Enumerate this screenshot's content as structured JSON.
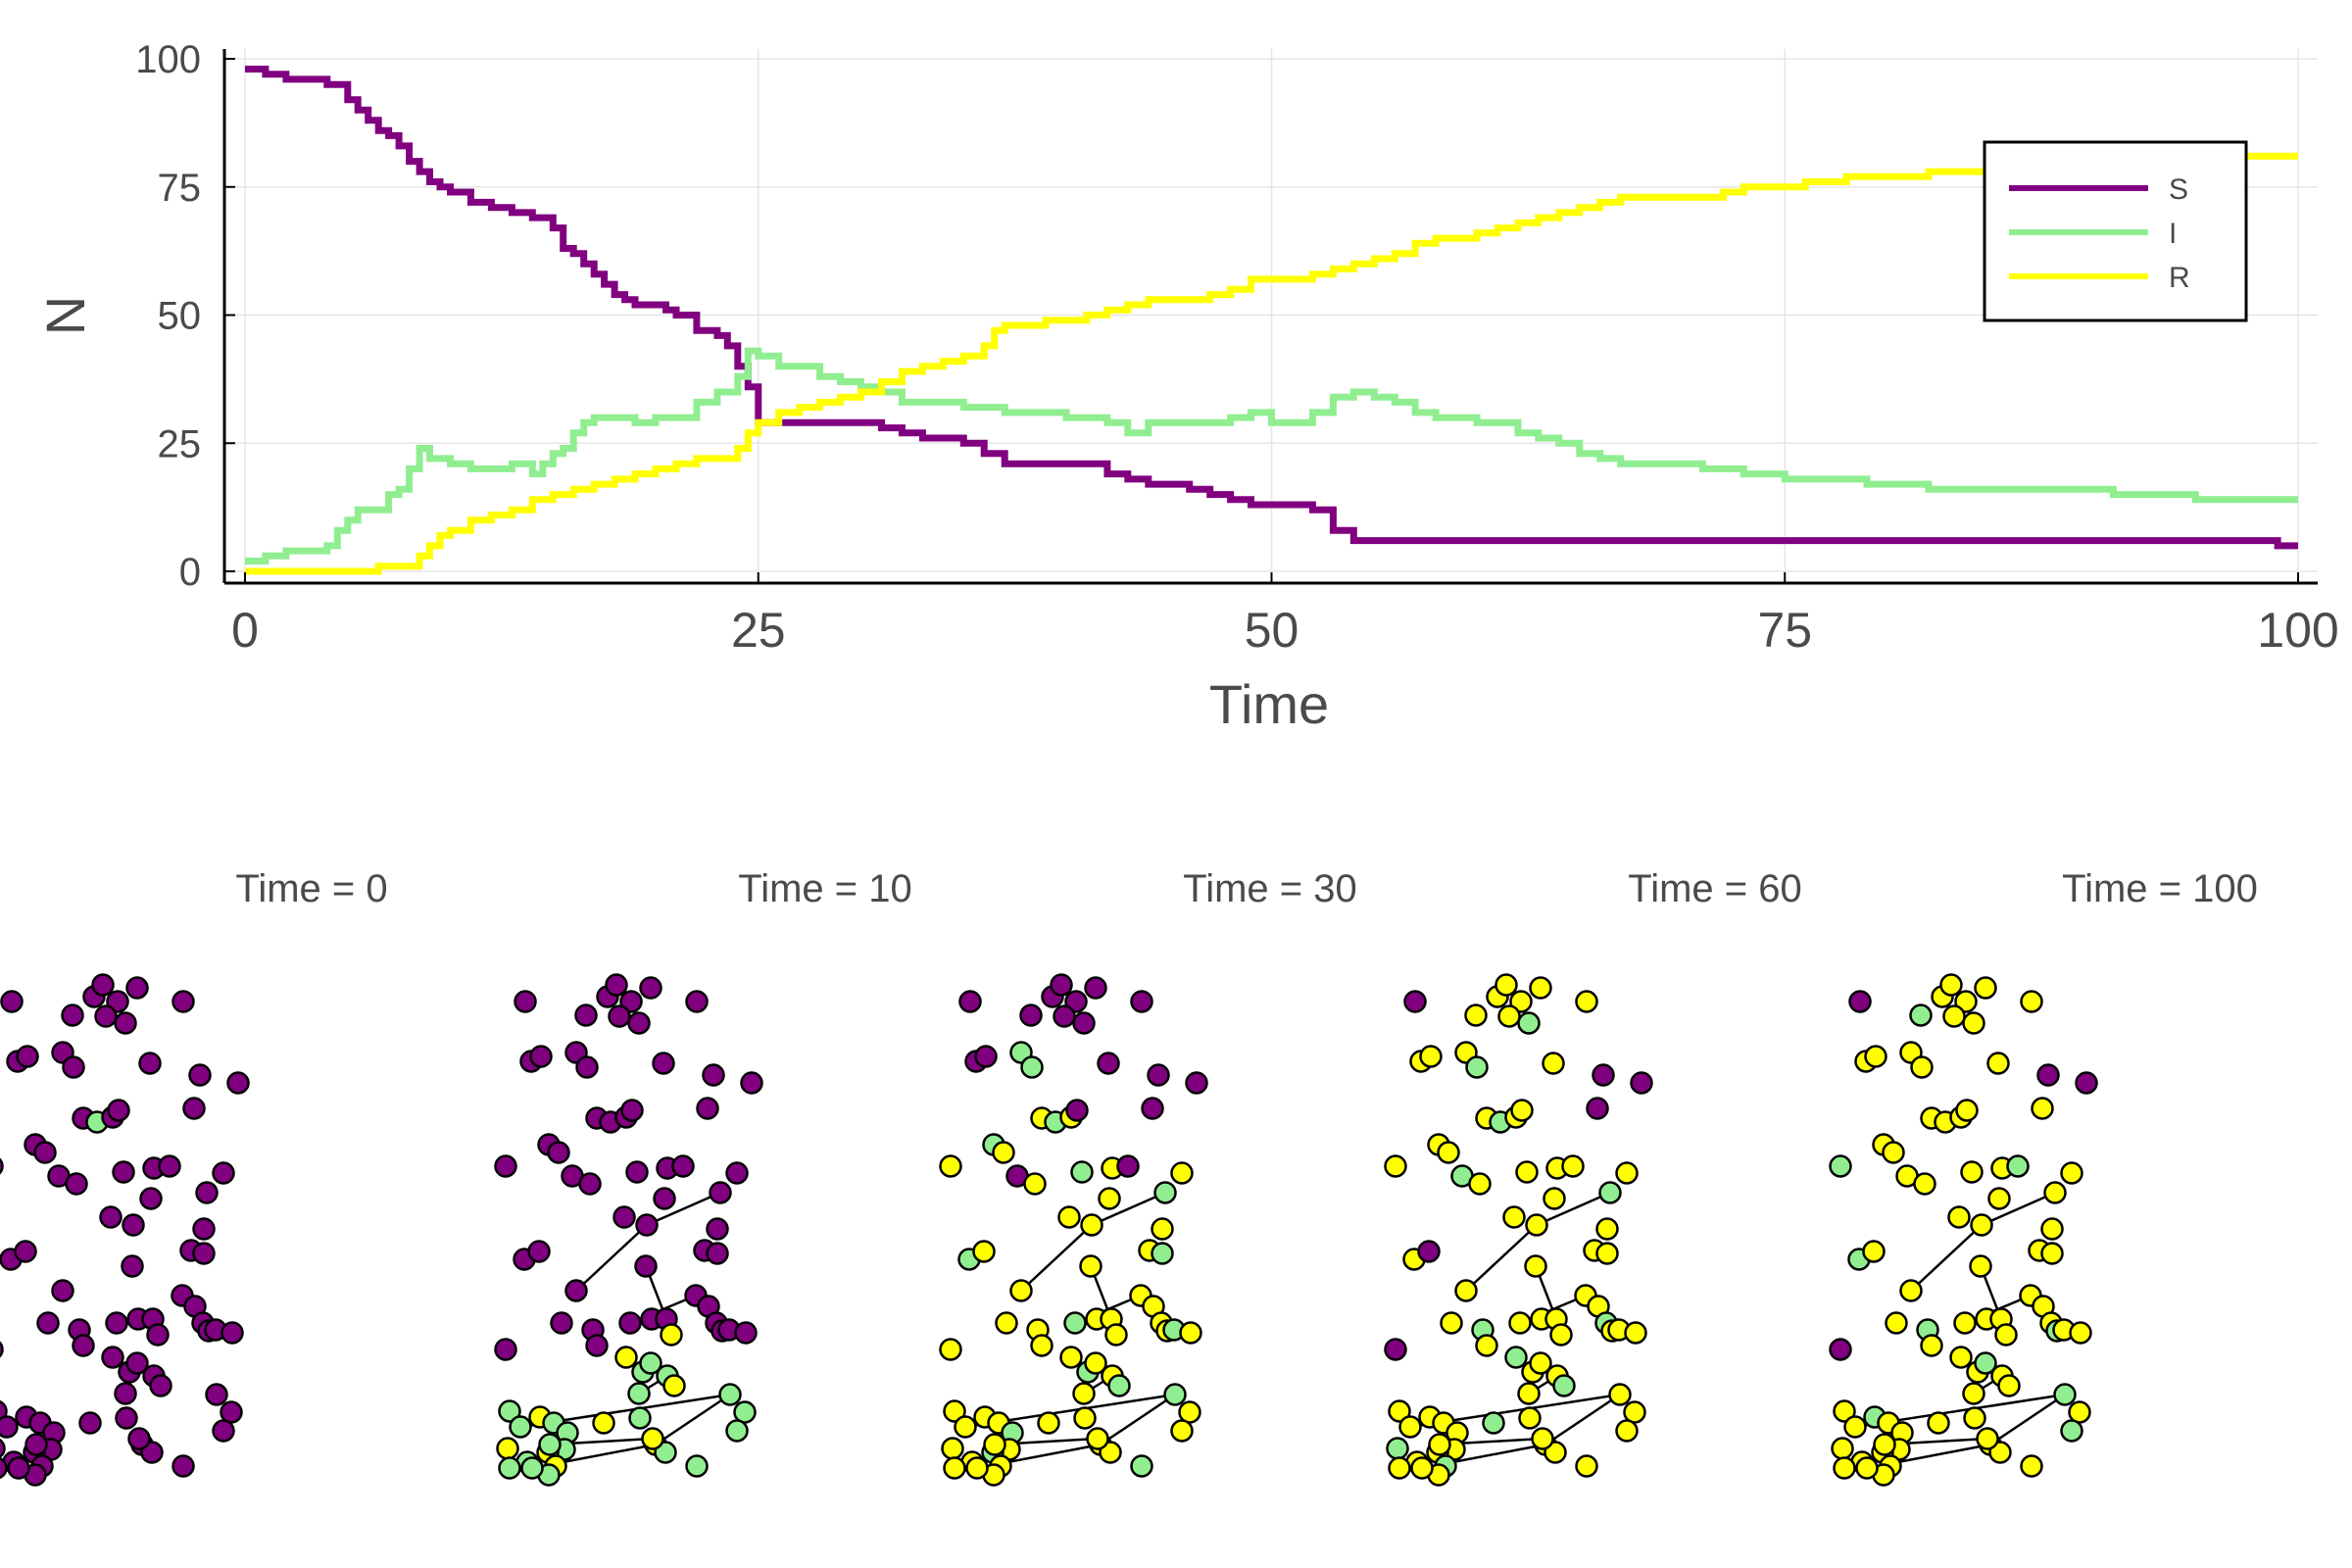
{
  "chart_data": [
    {
      "type": "line",
      "title": "",
      "xlabel": "Time",
      "ylabel": "N",
      "xlim": [
        0,
        100
      ],
      "ylim": [
        0,
        100
      ],
      "xticks": [
        0,
        25,
        50,
        75,
        100
      ],
      "yticks": [
        0,
        25,
        50,
        75,
        100
      ],
      "x_tick_labels": [
        "0",
        "25",
        "50",
        "75",
        "100"
      ],
      "y_tick_labels": [
        "0",
        "25",
        "50",
        "75",
        "100"
      ],
      "grid": true,
      "legend_position": "top-right",
      "step": true,
      "series": [
        {
          "name": "S",
          "color": "#800080",
          "points": [
            [
              0,
              98
            ],
            [
              0.5,
              98
            ],
            [
              1,
              97
            ],
            [
              2,
              96
            ],
            [
              4,
              95
            ],
            [
              5,
              92
            ],
            [
              5.5,
              90
            ],
            [
              6,
              88
            ],
            [
              6.5,
              86
            ],
            [
              7,
              85
            ],
            [
              7.5,
              83
            ],
            [
              8,
              80
            ],
            [
              8.5,
              78
            ],
            [
              9,
              76
            ],
            [
              9.5,
              75
            ],
            [
              10,
              74
            ],
            [
              11,
              72
            ],
            [
              12,
              71
            ],
            [
              13,
              70
            ],
            [
              14,
              69
            ],
            [
              15,
              67
            ],
            [
              15.5,
              63
            ],
            [
              16,
              62
            ],
            [
              16.5,
              60
            ],
            [
              17,
              58
            ],
            [
              17.5,
              56
            ],
            [
              18,
              54
            ],
            [
              18.5,
              53
            ],
            [
              19,
              52
            ],
            [
              20,
              52
            ],
            [
              20.5,
              51
            ],
            [
              21,
              50
            ],
            [
              22,
              47
            ],
            [
              23,
              46
            ],
            [
              23.5,
              44
            ],
            [
              24,
              40
            ],
            [
              24.5,
              36
            ],
            [
              25,
              29
            ],
            [
              26,
              29
            ],
            [
              30,
              29
            ],
            [
              31,
              28
            ],
            [
              32,
              27
            ],
            [
              33,
              26
            ],
            [
              34,
              26
            ],
            [
              35,
              25
            ],
            [
              36,
              23
            ],
            [
              37,
              21
            ],
            [
              40,
              21
            ],
            [
              42,
              19
            ],
            [
              43,
              18
            ],
            [
              44,
              17
            ],
            [
              45,
              17
            ],
            [
              46,
              16
            ],
            [
              47,
              15
            ],
            [
              48,
              14
            ],
            [
              49,
              13
            ],
            [
              50,
              13
            ],
            [
              52,
              12
            ],
            [
              53,
              8
            ],
            [
              54,
              6
            ],
            [
              60,
              6
            ],
            [
              70,
              6
            ],
            [
              80,
              6
            ],
            [
              90,
              6
            ],
            [
              98,
              6
            ],
            [
              99,
              5
            ],
            [
              100,
              5
            ]
          ]
        },
        {
          "name": "I",
          "color": "#90EE90",
          "points": [
            [
              0,
              2
            ],
            [
              0.5,
              2
            ],
            [
              1,
              3
            ],
            [
              2,
              4
            ],
            [
              3,
              4
            ],
            [
              4,
              5
            ],
            [
              4.5,
              8
            ],
            [
              5,
              10
            ],
            [
              5.5,
              12
            ],
            [
              6,
              12
            ],
            [
              7,
              15
            ],
            [
              7.5,
              16
            ],
            [
              8,
              20
            ],
            [
              8.5,
              24
            ],
            [
              9,
              22
            ],
            [
              10,
              21
            ],
            [
              11,
              20
            ],
            [
              12,
              20
            ],
            [
              13,
              21
            ],
            [
              14,
              19
            ],
            [
              14.5,
              21
            ],
            [
              15,
              23
            ],
            [
              15.5,
              24
            ],
            [
              16,
              27
            ],
            [
              16.5,
              29
            ],
            [
              17,
              30
            ],
            [
              18,
              30
            ],
            [
              19,
              29
            ],
            [
              20,
              30
            ],
            [
              21,
              30
            ],
            [
              22,
              33
            ],
            [
              23,
              35
            ],
            [
              24,
              38
            ],
            [
              24.5,
              43
            ],
            [
              25,
              42
            ],
            [
              26,
              40
            ],
            [
              27,
              40
            ],
            [
              28,
              38
            ],
            [
              29,
              37
            ],
            [
              30,
              36
            ],
            [
              31,
              35
            ],
            [
              32,
              33
            ],
            [
              33,
              33
            ],
            [
              35,
              32
            ],
            [
              36,
              32
            ],
            [
              37,
              31
            ],
            [
              38,
              31
            ],
            [
              40,
              30
            ],
            [
              41,
              30
            ],
            [
              42,
              29
            ],
            [
              43,
              27
            ],
            [
              44,
              29
            ],
            [
              45,
              29
            ],
            [
              46,
              29
            ],
            [
              48,
              30
            ],
            [
              49,
              31
            ],
            [
              50,
              29
            ],
            [
              51,
              29
            ],
            [
              52,
              31
            ],
            [
              53,
              34
            ],
            [
              54,
              35
            ],
            [
              55,
              34
            ],
            [
              56,
              33
            ],
            [
              57,
              31
            ],
            [
              58,
              30
            ],
            [
              60,
              29
            ],
            [
              62,
              27
            ],
            [
              63,
              26
            ],
            [
              64,
              25
            ],
            [
              65,
              23
            ],
            [
              66,
              22
            ],
            [
              67,
              21
            ],
            [
              70,
              21
            ],
            [
              71,
              20
            ],
            [
              72,
              20
            ],
            [
              73,
              19
            ],
            [
              74,
              19
            ],
            [
              75,
              18
            ],
            [
              78,
              18
            ],
            [
              79,
              17
            ],
            [
              81,
              17
            ],
            [
              82,
              16
            ],
            [
              90,
              16
            ],
            [
              91,
              15
            ],
            [
              94,
              15
            ],
            [
              95,
              14
            ],
            [
              98,
              14
            ],
            [
              100,
              14
            ]
          ]
        },
        {
          "name": "R",
          "color": "#FFFF00",
          "points": [
            [
              0,
              0
            ],
            [
              6,
              0
            ],
            [
              6.5,
              1
            ],
            [
              8,
              1
            ],
            [
              8.5,
              3
            ],
            [
              9,
              5
            ],
            [
              9.5,
              7
            ],
            [
              10,
              8
            ],
            [
              11,
              10
            ],
            [
              12,
              11
            ],
            [
              13,
              12
            ],
            [
              14,
              14
            ],
            [
              15,
              15
            ],
            [
              16,
              16
            ],
            [
              17,
              17
            ],
            [
              18,
              18
            ],
            [
              19,
              19
            ],
            [
              20,
              20
            ],
            [
              21,
              21
            ],
            [
              22,
              22
            ],
            [
              23,
              22
            ],
            [
              24,
              24
            ],
            [
              24.5,
              27
            ],
            [
              25,
              29
            ],
            [
              26,
              31
            ],
            [
              27,
              32
            ],
            [
              28,
              33
            ],
            [
              29,
              34
            ],
            [
              30,
              35
            ],
            [
              31,
              37
            ],
            [
              32,
              39
            ],
            [
              33,
              40
            ],
            [
              34,
              41
            ],
            [
              35,
              42
            ],
            [
              36,
              44
            ],
            [
              36.5,
              47
            ],
            [
              37,
              48
            ],
            [
              39,
              49
            ],
            [
              41,
              50
            ],
            [
              42,
              51
            ],
            [
              43,
              52
            ],
            [
              44,
              53
            ],
            [
              45,
              53
            ],
            [
              47,
              54
            ],
            [
              48,
              55
            ],
            [
              49,
              57
            ],
            [
              51,
              57
            ],
            [
              52,
              58
            ],
            [
              53,
              59
            ],
            [
              54,
              60
            ],
            [
              55,
              61
            ],
            [
              56,
              62
            ],
            [
              57,
              64
            ],
            [
              58,
              65
            ],
            [
              60,
              66
            ],
            [
              61,
              67
            ],
            [
              62,
              68
            ],
            [
              63,
              69
            ],
            [
              64,
              70
            ],
            [
              65,
              71
            ],
            [
              66,
              72
            ],
            [
              67,
              73
            ],
            [
              70,
              73
            ],
            [
              72,
              74
            ],
            [
              73,
              75
            ],
            [
              75,
              75
            ],
            [
              76,
              76
            ],
            [
              78,
              77
            ],
            [
              82,
              78
            ],
            [
              88,
              79
            ],
            [
              92,
              80
            ],
            [
              96,
              81
            ],
            [
              100,
              81
            ]
          ]
        }
      ]
    },
    {
      "type": "scatter",
      "title": "Time = 0",
      "colors": {
        "S": "#800080",
        "I": "#90EE90",
        "R": "#FFFF00"
      }
    },
    {
      "type": "scatter",
      "title": "Time = 10",
      "colors": {
        "S": "#800080",
        "I": "#90EE90",
        "R": "#FFFF00"
      }
    },
    {
      "type": "scatter",
      "title": "Time = 30",
      "colors": {
        "S": "#800080",
        "I": "#90EE90",
        "R": "#FFFF00"
      }
    },
    {
      "type": "scatter",
      "title": "Time = 60",
      "colors": {
        "S": "#800080",
        "I": "#90EE90",
        "R": "#FFFF00"
      }
    },
    {
      "type": "scatter",
      "title": "Time = 100",
      "colors": {
        "S": "#800080",
        "I": "#90EE90",
        "R": "#FFFF00"
      }
    }
  ]
}
